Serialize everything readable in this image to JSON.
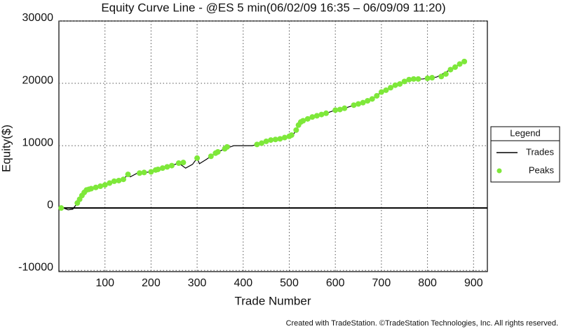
{
  "chart_data": {
    "type": "line",
    "title": "Equity Curve Line - @ES 5 min(06/02/09 16:35 – 06/09/09 11:20)",
    "x_label": "Trade Number",
    "y_label": "Equity($)",
    "xlim": [
      0,
      930
    ],
    "ylim": [
      -10200,
      30000
    ],
    "xticks": [
      100,
      200,
      300,
      400,
      500,
      600,
      700,
      800,
      900
    ],
    "yticks": [
      -10000,
      0,
      10000,
      20000,
      30000
    ],
    "grid": true,
    "legend_title": "Legend",
    "legend": "right",
    "series": [
      {
        "name": "Trades",
        "color": "#000000",
        "mode": "line",
        "x": [
          0,
          10,
          20,
          30,
          40,
          50,
          60,
          80,
          100,
          120,
          140,
          150,
          155,
          170,
          200,
          210,
          240,
          260,
          275,
          290,
          300,
          305,
          320,
          340,
          360,
          380,
          400,
          420,
          430,
          460,
          490,
          510,
          520,
          530,
          560,
          580,
          600,
          620,
          650,
          680,
          700,
          730,
          760,
          790,
          820,
          850,
          880
        ],
        "values": [
          0,
          0,
          -300,
          -200,
          800,
          2000,
          2900,
          3300,
          3700,
          4300,
          4600,
          5400,
          5000,
          5600,
          5800,
          6100,
          6700,
          7200,
          6400,
          7000,
          8000,
          7100,
          7800,
          8800,
          9500,
          10000,
          10000,
          10000,
          10200,
          10900,
          11300,
          11900,
          13300,
          14000,
          14800,
          15200,
          15700,
          16000,
          16700,
          17500,
          18600,
          19700,
          20600,
          20700,
          21000,
          22200,
          23500
        ]
      },
      {
        "name": "Peaks",
        "color": "#7ee83a",
        "mode": "markers",
        "x": [
          5,
          40,
          45,
          50,
          55,
          60,
          65,
          70,
          80,
          90,
          100,
          110,
          120,
          130,
          140,
          150,
          175,
          185,
          200,
          210,
          215,
          225,
          235,
          245,
          260,
          270,
          300,
          330,
          340,
          345,
          360,
          365,
          430,
          440,
          450,
          460,
          470,
          480,
          490,
          500,
          505,
          515,
          520,
          525,
          530,
          540,
          550,
          560,
          570,
          580,
          600,
          610,
          620,
          640,
          650,
          660,
          670,
          680,
          690,
          700,
          710,
          720,
          730,
          740,
          750,
          760,
          770,
          780,
          800,
          810,
          830,
          840,
          850,
          860,
          870,
          880
        ],
        "values": [
          0,
          800,
          1400,
          2000,
          2500,
          2900,
          3000,
          3100,
          3300,
          3500,
          3700,
          4000,
          4300,
          4400,
          4600,
          5400,
          5600,
          5700,
          5800,
          6100,
          6200,
          6400,
          6600,
          6800,
          7200,
          7300,
          8000,
          8300,
          8800,
          9000,
          9500,
          9800,
          10200,
          10400,
          10700,
          10900,
          11000,
          11100,
          11300,
          11500,
          11700,
          12500,
          13300,
          13800,
          14000,
          14300,
          14600,
          14800,
          15000,
          15200,
          15700,
          15800,
          16000,
          16500,
          16700,
          16900,
          17200,
          17500,
          18000,
          18600,
          18900,
          19300,
          19700,
          19900,
          20300,
          20600,
          20700,
          20700,
          20800,
          20900,
          21100,
          21500,
          22200,
          22600,
          23100,
          23500
        ]
      }
    ]
  },
  "footer": "Created with TradeStation. ©TradeStation Technologies, Inc. All rights reserved."
}
